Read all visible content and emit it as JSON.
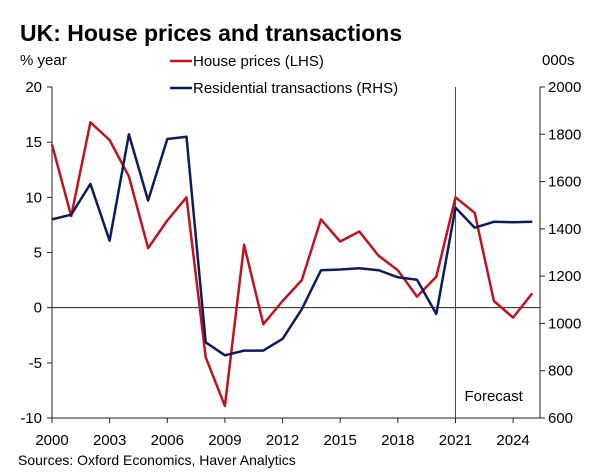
{
  "chart_data": {
    "type": "line",
    "title": "UK: House prices and transactions",
    "left_unit": "% year",
    "right_unit": "000s",
    "source": "Sources: Oxford Economics, Haver Analytics",
    "forecast_label": "Forecast",
    "forecast_start_year": 2021,
    "x": [
      2000,
      2001,
      2002,
      2003,
      2004,
      2005,
      2006,
      2007,
      2008,
      2009,
      2010,
      2011,
      2012,
      2013,
      2014,
      2015,
      2016,
      2017,
      2018,
      2019,
      2020,
      2021,
      2022,
      2023,
      2024,
      2025
    ],
    "x_ticks": [
      2000,
      2003,
      2006,
      2009,
      2012,
      2015,
      2018,
      2021,
      2024
    ],
    "x_tick_labels": [
      "2000",
      "2003",
      "2006",
      "2009",
      "2012",
      "2015",
      "2018",
      "2021",
      "2024"
    ],
    "xlim": [
      2000,
      2025.4
    ],
    "ylim_left": [
      -10,
      20
    ],
    "y_ticks_left": [
      -10,
      -5,
      0,
      5,
      10,
      15,
      20
    ],
    "y_tick_labels_left": [
      "-10",
      "-5",
      "0",
      "5",
      "10",
      "15",
      "20"
    ],
    "ylim_right": [
      600,
      2000
    ],
    "y_ticks_right": [
      600,
      800,
      1000,
      1200,
      1400,
      1600,
      1800,
      2000
    ],
    "y_tick_labels_right": [
      "600",
      "800",
      "1000",
      "1200",
      "1400",
      "1600",
      "1800",
      "2000"
    ],
    "series": [
      {
        "name": "House prices (LHS)",
        "axis": "left",
        "color": "#c0131e",
        "values": [
          14.8,
          8.3,
          16.8,
          15.2,
          11.9,
          5.4,
          7.9,
          10.0,
          -4.5,
          -8.9,
          5.7,
          -1.5,
          0.6,
          2.5,
          8.0,
          6.0,
          6.9,
          4.7,
          3.4,
          1.0,
          2.8,
          10.0,
          8.6,
          0.6,
          -0.9,
          1.3
        ]
      },
      {
        "name": "Residential transactions (RHS)",
        "axis": "right",
        "color": "#0d1c5c",
        "values": [
          1440,
          1460,
          1590,
          1350,
          1800,
          1520,
          1780,
          1790,
          920,
          865,
          885,
          885,
          935,
          1060,
          1225,
          1228,
          1233,
          1225,
          1195,
          1185,
          1040,
          1490,
          1405,
          1430,
          1428,
          1430
        ]
      }
    ]
  }
}
